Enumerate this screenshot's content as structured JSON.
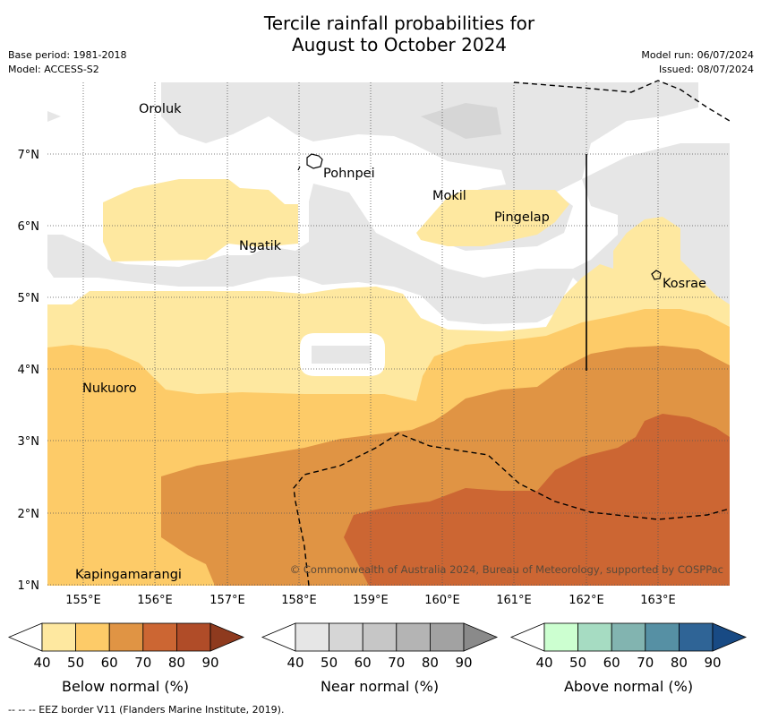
{
  "title": {
    "line1": "Tercile rainfall probabilities for",
    "line2": "August to October 2024"
  },
  "meta": {
    "base_period": "Base period: 1981-2018",
    "model": "Model: ACCESS-S2",
    "model_run": "Model run: 06/07/2024",
    "issued": "Issued: 08/07/2024"
  },
  "map": {
    "places": [
      "Oroluk",
      "Pohnpei",
      "Mokil",
      "Pingelap",
      "Ngatik",
      "Kosrae",
      "Nukuoro",
      "Kapingamarangi"
    ],
    "lat_labels": [
      "7°N",
      "6°N",
      "5°N",
      "4°N",
      "3°N",
      "2°N",
      "1°N"
    ],
    "lon_labels": [
      "155°E",
      "156°E",
      "157°E",
      "158°E",
      "159°E",
      "160°E",
      "161°E",
      "162°E",
      "163°E"
    ],
    "copyright": "© Commonwealth of Australia 2024, Bureau of Meteorology, supported by COSPPac"
  },
  "legend": {
    "ticks": [
      "40",
      "50",
      "60",
      "70",
      "80",
      "90"
    ],
    "below": {
      "label": "Below normal (%)",
      "colors": [
        "#ffffff",
        "#fee8a0",
        "#fdcb68",
        "#e09444",
        "#cc6633",
        "#b04c28",
        "#8e3a1e"
      ]
    },
    "near": {
      "label": "Near normal (%)",
      "colors": [
        "#ffffff",
        "#e6e6e6",
        "#d6d6d6",
        "#c6c6c6",
        "#b4b4b4",
        "#a2a2a2",
        "#8a8a8a"
      ]
    },
    "above": {
      "label": "Above normal (%)",
      "colors": [
        "#ffffff",
        "#ccffd0",
        "#a6dcc2",
        "#82b4b0",
        "#5690a4",
        "#2f6496",
        "#184a84"
      ]
    }
  },
  "footer": "--  --  -- EEZ border V11 (Flanders Marine Institute, 2019)."
}
